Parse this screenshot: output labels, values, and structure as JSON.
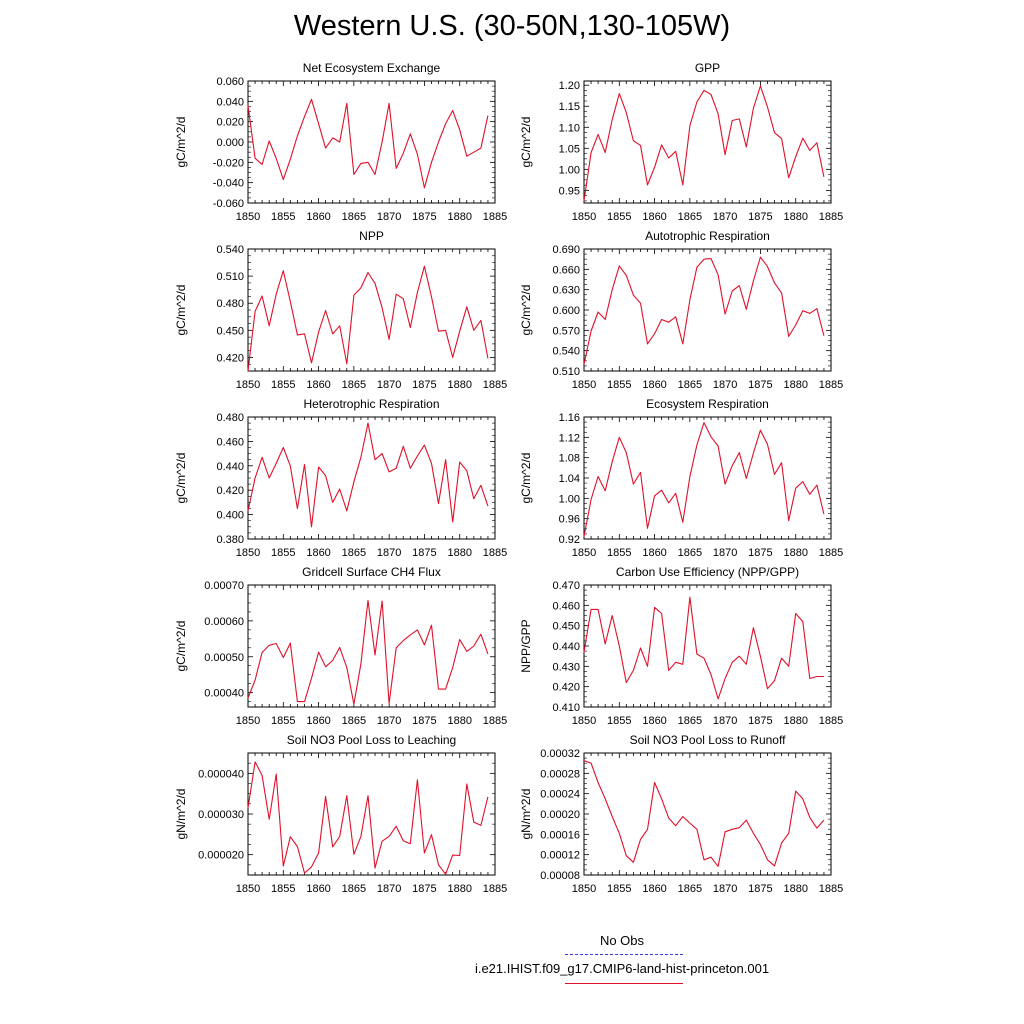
{
  "title": "Western U.S. (30-50N,130-105W)",
  "legend": {
    "obs_label": "No Obs",
    "model_label": "i.e21.IHIST.f09_g17.CMIP6-land-hist-princeton.001",
    "obs_color": "#3a3ad6",
    "model_color": "#e0102a"
  },
  "chart_data": [
    {
      "type": "line",
      "title": "Net Ecosystem Exchange",
      "ylabel": "gC/m^2/d",
      "xlabel": "",
      "xlim": [
        1850,
        1885
      ],
      "ylim": [
        -0.06,
        0.06
      ],
      "xticks": [
        "1850",
        "1855",
        "1860",
        "1865",
        "1870",
        "1875",
        "1880",
        "1885"
      ],
      "yticks": [
        "0.060",
        "0.040",
        "0.020",
        "0.000",
        "-0.020",
        "-0.040",
        "-0.060"
      ],
      "ytick_values": [
        0.06,
        0.04,
        0.02,
        0.0,
        -0.02,
        -0.04,
        -0.06
      ],
      "series": [
        {
          "color": "#e0102a",
          "values": [
            0.036,
            -0.016,
            -0.022,
            0.001,
            -0.016,
            -0.037,
            -0.017,
            0.006,
            0.025,
            0.042,
            0.018,
            -0.006,
            0.004,
            0.0,
            0.038,
            -0.032,
            -0.021,
            -0.02,
            -0.032,
            0.0,
            0.038,
            -0.026,
            -0.011,
            0.008,
            -0.012,
            -0.045,
            -0.02,
            0.0,
            0.018,
            0.031,
            0.012,
            -0.014,
            -0.01,
            -0.006,
            0.026
          ]
        }
      ]
    },
    {
      "type": "line",
      "title": "GPP",
      "ylabel": "gC/m^2/d",
      "xlabel": "",
      "xlim": [
        1850,
        1885
      ],
      "ylim": [
        0.92,
        1.21
      ],
      "xticks": [
        "1850",
        "1855",
        "1860",
        "1865",
        "1870",
        "1875",
        "1880",
        "1885"
      ],
      "yticks": [
        "1.20",
        "1.15",
        "1.10",
        "1.05",
        "1.00",
        "0.95"
      ],
      "ytick_values": [
        1.2,
        1.15,
        1.1,
        1.05,
        1.0,
        0.95
      ],
      "series": [
        {
          "color": "#e0102a",
          "values": [
            0.925,
            1.04,
            1.083,
            1.04,
            1.118,
            1.18,
            1.135,
            1.068,
            1.057,
            0.963,
            1.005,
            1.058,
            1.027,
            1.043,
            0.963,
            1.104,
            1.16,
            1.188,
            1.178,
            1.132,
            1.035,
            1.116,
            1.12,
            1.053,
            1.145,
            1.198,
            1.148,
            1.087,
            1.073,
            0.98,
            1.03,
            1.074,
            1.045,
            1.063,
            0.982
          ]
        }
      ]
    },
    {
      "type": "line",
      "title": "NPP",
      "ylabel": "gC/m^2/d",
      "xlabel": "",
      "xlim": [
        1850,
        1885
      ],
      "ylim": [
        0.405,
        0.54
      ],
      "xticks": [
        "1850",
        "1855",
        "1860",
        "1865",
        "1870",
        "1875",
        "1880",
        "1885"
      ],
      "yticks": [
        "0.540",
        "0.510",
        "0.480",
        "0.450",
        "0.420"
      ],
      "ytick_values": [
        0.54,
        0.51,
        0.48,
        0.45,
        0.42
      ],
      "series": [
        {
          "color": "#e0102a",
          "values": [
            0.405,
            0.471,
            0.488,
            0.455,
            0.49,
            0.516,
            0.482,
            0.445,
            0.446,
            0.414,
            0.448,
            0.472,
            0.446,
            0.455,
            0.413,
            0.489,
            0.497,
            0.514,
            0.502,
            0.475,
            0.44,
            0.49,
            0.485,
            0.453,
            0.492,
            0.521,
            0.487,
            0.449,
            0.45,
            0.42,
            0.449,
            0.476,
            0.45,
            0.461,
            0.419
          ]
        }
      ]
    },
    {
      "type": "line",
      "title": "Autotrophic Respiration",
      "ylabel": "gC/m^2/d",
      "xlabel": "",
      "xlim": [
        1850,
        1885
      ],
      "ylim": [
        0.51,
        0.69
      ],
      "xticks": [
        "1850",
        "1855",
        "1860",
        "1865",
        "1870",
        "1875",
        "1880",
        "1885"
      ],
      "yticks": [
        "0.690",
        "0.660",
        "0.630",
        "0.600",
        "0.570",
        "0.540",
        "0.510"
      ],
      "ytick_values": [
        0.69,
        0.66,
        0.63,
        0.6,
        0.57,
        0.54,
        0.51
      ],
      "series": [
        {
          "color": "#e0102a",
          "values": [
            0.52,
            0.569,
            0.597,
            0.586,
            0.63,
            0.665,
            0.651,
            0.622,
            0.61,
            0.55,
            0.565,
            0.586,
            0.582,
            0.59,
            0.55,
            0.615,
            0.663,
            0.675,
            0.676,
            0.652,
            0.594,
            0.628,
            0.636,
            0.601,
            0.643,
            0.678,
            0.664,
            0.64,
            0.625,
            0.561,
            0.578,
            0.599,
            0.595,
            0.602,
            0.562
          ]
        }
      ]
    },
    {
      "type": "line",
      "title": "Heterotrophic Respiration",
      "ylabel": "gC/m^2/d",
      "xlabel": "",
      "xlim": [
        1850,
        1885
      ],
      "ylim": [
        0.38,
        0.48
      ],
      "xticks": [
        "1850",
        "1855",
        "1860",
        "1865",
        "1870",
        "1875",
        "1880",
        "1885"
      ],
      "yticks": [
        "0.480",
        "0.460",
        "0.440",
        "0.420",
        "0.400",
        "0.380"
      ],
      "ytick_values": [
        0.48,
        0.46,
        0.44,
        0.42,
        0.4,
        0.38
      ],
      "series": [
        {
          "color": "#e0102a",
          "values": [
            0.403,
            0.43,
            0.447,
            0.43,
            0.442,
            0.455,
            0.44,
            0.405,
            0.441,
            0.39,
            0.439,
            0.432,
            0.41,
            0.421,
            0.403,
            0.427,
            0.447,
            0.475,
            0.445,
            0.45,
            0.435,
            0.438,
            0.456,
            0.438,
            0.448,
            0.457,
            0.442,
            0.409,
            0.445,
            0.394,
            0.443,
            0.436,
            0.413,
            0.424,
            0.407
          ]
        }
      ]
    },
    {
      "type": "line",
      "title": "Ecosystem Respiration",
      "ylabel": "gC/m^2/d",
      "xlabel": "",
      "xlim": [
        1850,
        1885
      ],
      "ylim": [
        0.92,
        1.16
      ],
      "xticks": [
        "1850",
        "1855",
        "1860",
        "1865",
        "1870",
        "1875",
        "1880",
        "1885"
      ],
      "yticks": [
        "1.16",
        "1.12",
        "1.08",
        "1.04",
        "1.00",
        "0.96",
        "0.92"
      ],
      "ytick_values": [
        1.16,
        1.12,
        1.08,
        1.04,
        1.0,
        0.96,
        0.92
      ],
      "series": [
        {
          "color": "#e0102a",
          "values": [
            0.925,
            0.998,
            1.043,
            1.015,
            1.072,
            1.12,
            1.09,
            1.028,
            1.051,
            0.941,
            1.005,
            1.016,
            0.991,
            1.01,
            0.953,
            1.043,
            1.105,
            1.149,
            1.121,
            1.103,
            1.028,
            1.064,
            1.09,
            1.039,
            1.089,
            1.134,
            1.106,
            1.047,
            1.07,
            0.956,
            1.02,
            1.033,
            1.008,
            1.026,
            0.969
          ]
        }
      ]
    },
    {
      "type": "line",
      "title": "Gridcell Surface CH4 Flux",
      "ylabel": "gC/m^2/d",
      "xlabel": "",
      "xlim": [
        1850,
        1885
      ],
      "ylim": [
        0.00036,
        0.0007
      ],
      "xticks": [
        "1850",
        "1855",
        "1860",
        "1865",
        "1870",
        "1875",
        "1880",
        "1885"
      ],
      "yticks": [
        "0.00070",
        "0.00060",
        "0.00050",
        "0.00040"
      ],
      "ytick_values": [
        0.0007,
        0.0006,
        0.0005,
        0.0004
      ],
      "series": [
        {
          "color": "#e0102a",
          "values": [
            0.000385,
            0.000435,
            0.000512,
            0.000532,
            0.000537,
            0.000498,
            0.000538,
            0.000375,
            0.000375,
            0.00044,
            0.000513,
            0.000472,
            0.00049,
            0.000526,
            0.00047,
            0.000368,
            0.00048,
            0.000657,
            0.000505,
            0.000655,
            0.00037,
            0.000525,
            0.000545,
            0.000561,
            0.000575,
            0.000533,
            0.000588,
            0.00041,
            0.00041,
            0.00047,
            0.000548,
            0.000515,
            0.00053,
            0.000563,
            0.000508
          ]
        }
      ]
    },
    {
      "type": "line",
      "title": "Carbon Use Efficiency (NPP/GPP)",
      "ylabel": "NPP/GPP",
      "xlabel": "",
      "xlim": [
        1850,
        1885
      ],
      "ylim": [
        0.41,
        0.47
      ],
      "xticks": [
        "1850",
        "1855",
        "1860",
        "1865",
        "1870",
        "1875",
        "1880",
        "1885"
      ],
      "yticks": [
        "0.470",
        "0.460",
        "0.450",
        "0.440",
        "0.430",
        "0.420",
        "0.410"
      ],
      "ytick_values": [
        0.47,
        0.46,
        0.45,
        0.44,
        0.43,
        0.42,
        0.41
      ],
      "series": [
        {
          "color": "#e0102a",
          "values": [
            0.437,
            0.458,
            0.458,
            0.441,
            0.455,
            0.44,
            0.422,
            0.428,
            0.439,
            0.43,
            0.459,
            0.456,
            0.428,
            0.432,
            0.431,
            0.464,
            0.436,
            0.434,
            0.426,
            0.414,
            0.424,
            0.432,
            0.435,
            0.431,
            0.449,
            0.435,
            0.419,
            0.423,
            0.434,
            0.43,
            0.456,
            0.452,
            0.424,
            0.425,
            0.425
          ]
        }
      ]
    },
    {
      "type": "line",
      "title": "Soil NO3 Pool Loss to Leaching",
      "ylabel": "gN/m^2/d",
      "xlabel": "",
      "xlim": [
        1850,
        1885
      ],
      "ylim": [
        1.5e-05,
        4.5e-05
      ],
      "xticks": [
        "1850",
        "1855",
        "1860",
        "1865",
        "1870",
        "1875",
        "1880",
        "1885"
      ],
      "yticks": [
        "0.000040",
        "0.000030",
        "0.000020"
      ],
      "ytick_values": [
        4e-05,
        3e-05,
        2e-05
      ],
      "series": [
        {
          "color": "#e0102a",
          "values": [
            3.15e-05,
            4.28e-05,
            3.95e-05,
            2.87e-05,
            3.98e-05,
            1.72e-05,
            2.44e-05,
            2.2e-05,
            1.55e-05,
            1.7e-05,
            2.04e-05,
            3.43e-05,
            2.19e-05,
            2.45e-05,
            3.45e-05,
            2.01e-05,
            2.45e-05,
            3.45e-05,
            1.67e-05,
            2.33e-05,
            2.45e-05,
            2.7e-05,
            2.34e-05,
            2.27e-05,
            3.84e-05,
            2.04e-05,
            2.49e-05,
            1.75e-05,
            1.52e-05,
            1.99e-05,
            1.98e-05,
            3.74e-05,
            2.8e-05,
            2.72e-05,
            3.42e-05
          ]
        }
      ]
    },
    {
      "type": "line",
      "title": "Soil NO3 Pool Loss to Runoff",
      "ylabel": "gN/m^2/d",
      "xlabel": "",
      "xlim": [
        1850,
        1885
      ],
      "ylim": [
        8e-05,
        0.00032
      ],
      "xticks": [
        "1850",
        "1855",
        "1860",
        "1865",
        "1870",
        "1875",
        "1880",
        "1885"
      ],
      "yticks": [
        "0.00032",
        "0.00028",
        "0.00024",
        "0.00020",
        "0.00016",
        "0.00012",
        "0.00008"
      ],
      "ytick_values": [
        0.00032,
        0.00028,
        0.00024,
        0.0002,
        0.00016,
        0.00012,
        8e-05
      ],
      "series": [
        {
          "color": "#e0102a",
          "values": [
            0.000305,
            0.0003,
            0.000262,
            0.00023,
            0.000195,
            0.000162,
            0.000118,
            0.000105,
            0.00015,
            0.00017,
            0.000262,
            0.00023,
            0.000192,
            0.000177,
            0.000195,
            0.000182,
            0.00017,
            0.00011,
            0.000115,
            9.7e-05,
            0.000165,
            0.00017,
            0.000173,
            0.000188,
            0.000162,
            0.00014,
            0.00011,
            9.8e-05,
            0.000143,
            0.000162,
            0.000245,
            0.00023,
            0.000193,
            0.000172,
            0.000188
          ]
        }
      ]
    }
  ]
}
